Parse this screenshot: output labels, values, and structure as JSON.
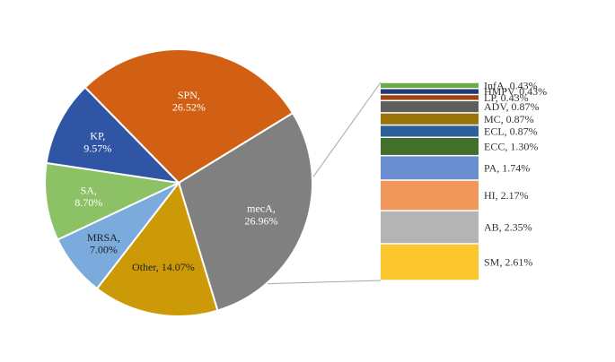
{
  "chart_data": {
    "type": "pie",
    "subtype": "pie-of-pie",
    "title": "",
    "pie": {
      "slices": [
        {
          "label": "mecA",
          "value": 26.96,
          "display": "26.96%",
          "color": "#808080",
          "text_color": "#ffffff"
        },
        {
          "label": "Other",
          "value": 14.07,
          "display": "14.07%",
          "color": "#cc9a06",
          "text_color": "#222222"
        },
        {
          "label": "MRSA",
          "value": 7.0,
          "display": "7.00%",
          "color": "#7aabdc",
          "text_color": "#222222"
        },
        {
          "label": "SA",
          "value": 8.7,
          "display": "8.70%",
          "color": "#8cc166",
          "text_color": "#ffffff"
        },
        {
          "label": "KP",
          "value": 9.57,
          "display": "9.57%",
          "color": "#2f55a4",
          "text_color": "#ffffff"
        },
        {
          "label": "SPN",
          "value": 26.52,
          "display": "26.52%",
          "color": "#d26014",
          "text_color": "#ffffff"
        }
      ]
    },
    "breakdown_bar": {
      "parent": "Other",
      "segments": [
        {
          "label": "InfA",
          "value": 0.43,
          "display": "0.43%",
          "color": "#6aab47"
        },
        {
          "label": "HMPV",
          "value": 0.43,
          "display": "0.43%",
          "color": "#1f3a73"
        },
        {
          "label": "LP",
          "value": 0.43,
          "display": "0.43%",
          "color": "#a54310"
        },
        {
          "label": "ADV",
          "value": 0.87,
          "display": "0.87%",
          "color": "#5e5e5e"
        },
        {
          "label": "MC",
          "value": 0.87,
          "display": "0.87%",
          "color": "#9b7408"
        },
        {
          "label": "ECL",
          "value": 0.87,
          "display": "0.87%",
          "color": "#2d5f98"
        },
        {
          "label": "ECC",
          "value": 1.3,
          "display": "1.30%",
          "color": "#426f2c"
        },
        {
          "label": "PA",
          "value": 1.74,
          "display": "1.74%",
          "color": "#6b8fd0"
        },
        {
          "label": "HI",
          "value": 2.17,
          "display": "2.17%",
          "color": "#f0975c"
        },
        {
          "label": "AB",
          "value": 2.35,
          "display": "2.35%",
          "color": "#b4b4b4"
        },
        {
          "label": "SM",
          "value": 2.61,
          "display": "2.61%",
          "color": "#fcc72e"
        }
      ]
    },
    "legend": "none",
    "connector_color": "#a6a6a6"
  }
}
